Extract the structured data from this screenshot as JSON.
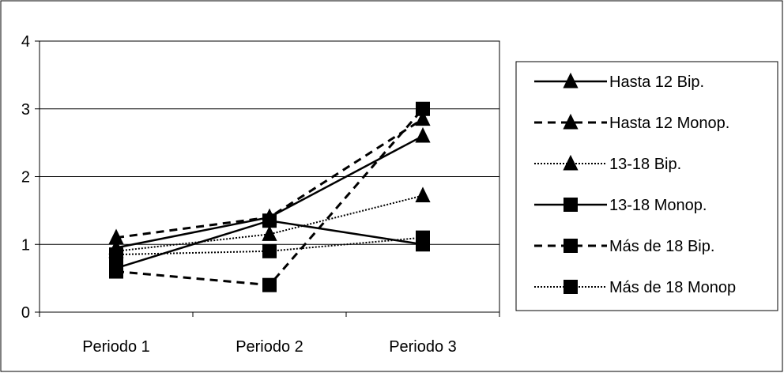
{
  "chart_data": {
    "type": "line",
    "categories": [
      "Periodo 1",
      "Periodo 2",
      "Periodo 3"
    ],
    "ylim": [
      0,
      4
    ],
    "yticks": [
      0,
      1,
      2,
      3,
      4
    ],
    "grid": true,
    "legend_position": "right",
    "series": [
      {
        "name": "Hasta 12 Bip.",
        "values": [
          0.95,
          1.4,
          2.6
        ],
        "marker": "triangle",
        "dash": "solid"
      },
      {
        "name": "Hasta 12 Monop.",
        "values": [
          1.1,
          1.4,
          2.85
        ],
        "marker": "triangle",
        "dash": "dashed"
      },
      {
        "name": "13-18 Bip.",
        "values": [
          0.9,
          1.15,
          1.72
        ],
        "marker": "triangle",
        "dash": "dotted"
      },
      {
        "name": "13-18 Monop.",
        "values": [
          0.65,
          1.35,
          1.0
        ],
        "marker": "square",
        "dash": "solid"
      },
      {
        "name": "Más de 18 Bip.",
        "values": [
          0.6,
          0.4,
          3.0
        ],
        "marker": "square",
        "dash": "dashed"
      },
      {
        "name": "Más de 18 Monop",
        "values": [
          0.85,
          0.9,
          1.1
        ],
        "marker": "square",
        "dash": "dotted"
      }
    ]
  }
}
